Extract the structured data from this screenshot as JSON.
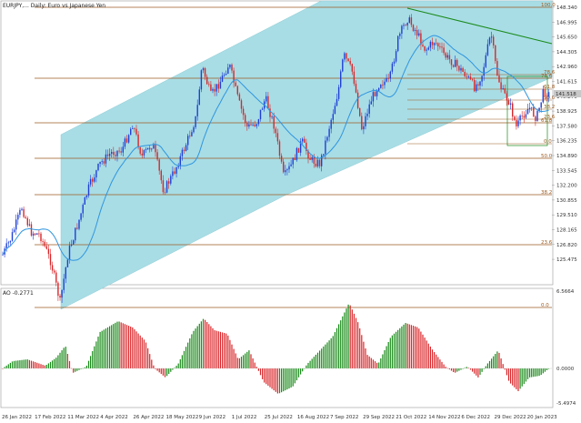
{
  "main_chart": {
    "title": "EURJPY,...  Daily:  Euro vs Japanese Yen",
    "price_axis": [
      "148.340",
      "146.995",
      "145.650",
      "144.305",
      "142.960",
      "141.615",
      "140.270",
      "138.925",
      "137.580",
      "136.235",
      "134.890",
      "133.545",
      "132.200",
      "130.855",
      "129.510",
      "128.165",
      "126.820",
      "125.475"
    ],
    "current_price": "141.518",
    "fib_levels": [
      "100.0",
      "78.6",
      "61.8",
      "50.0",
      "38.2",
      "23.6",
      "0.0"
    ],
    "fib_levels_big": [
      "0.0",
      "23.6",
      "38.2",
      "50.0",
      "61.8",
      "78.6",
      "100.0"
    ],
    "colors": {
      "bull": "#1f3fd6",
      "bear": "#d8262a",
      "channel": "#a8dde5",
      "ma": "#2f95e0",
      "fib": "#9c5a20",
      "trend": "#1a8a1a"
    }
  },
  "ao_panel": {
    "title": "AO -0.2771",
    "axis": [
      "6.5664",
      "0.0000",
      "-5.4974"
    ]
  },
  "date_axis": [
    "26 Jan 2022",
    "17 Feb 2022",
    "11 Mar 2022",
    "4 Apr 2022",
    "26 Apr 2022",
    "18 May 2022",
    "9 Jun 2022",
    "1 Jul 2022",
    "25 Jul 2022",
    "16 Aug 2022",
    "7 Sep 2022",
    "29 Sep 2022",
    "21 Oct 2022",
    "14 Nov 2022",
    "6 Dec 2022",
    "29 Dec 2022",
    "20 Jan 2023"
  ]
}
